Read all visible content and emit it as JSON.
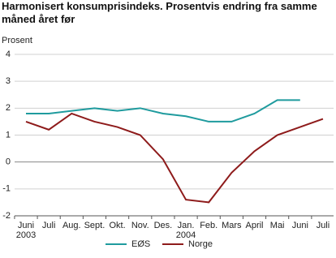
{
  "chart_data": {
    "type": "line",
    "title": "Harmonisert konsumprisindeks. Prosentvis endring fra samme måned året før",
    "y_label": "Prosent",
    "categories": [
      [
        "Juni",
        "2003"
      ],
      [
        "Juli"
      ],
      [
        "Aug."
      ],
      [
        "Sept."
      ],
      [
        "Okt."
      ],
      [
        "Nov."
      ],
      [
        "Des."
      ],
      [
        "Jan.",
        "2004"
      ],
      [
        "Feb."
      ],
      [
        "Mars"
      ],
      [
        "April"
      ],
      [
        "Mai"
      ],
      [
        "Juni"
      ],
      [
        "Juli"
      ]
    ],
    "series": [
      {
        "name": "EØS",
        "color": "#1f9b9e",
        "values": [
          1.8,
          1.8,
          1.9,
          2.0,
          1.9,
          2.0,
          1.8,
          1.7,
          1.5,
          1.5,
          1.8,
          2.3,
          2.3,
          null
        ]
      },
      {
        "name": "Norge",
        "color": "#8e1b1b",
        "values": [
          1.5,
          1.2,
          1.8,
          1.5,
          1.3,
          1.0,
          0.1,
          -1.4,
          -1.5,
          -0.4,
          0.4,
          1.0,
          1.3,
          1.6
        ]
      }
    ],
    "ylim": [
      -2,
      4
    ],
    "yticks": [
      -2,
      -1,
      0,
      1,
      2,
      3,
      4
    ],
    "grid": true
  }
}
